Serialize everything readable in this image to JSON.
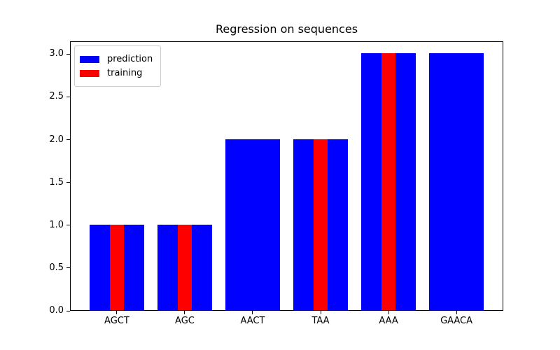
{
  "chart_data": {
    "type": "bar",
    "title": "Regression on sequences",
    "xlabel": "",
    "ylabel": "",
    "categories": [
      "AGCT",
      "AGC",
      "AACT",
      "TAA",
      "AAA",
      "GAACA"
    ],
    "series": [
      {
        "name": "prediction",
        "color": "#0000ff",
        "bar_width_units": 0.8,
        "values": [
          1.0,
          1.0,
          2.0,
          2.0,
          3.0,
          3.0
        ]
      },
      {
        "name": "training",
        "color": "#ff0000",
        "bar_width_units": 0.2,
        "values": [
          1.0,
          1.0,
          null,
          2.0,
          3.0,
          null
        ]
      }
    ],
    "ylim": [
      0,
      3.15
    ],
    "xlim": [
      -0.69,
      5.69
    ],
    "yticks": [
      0.0,
      0.5,
      1.0,
      1.5,
      2.0,
      2.5,
      3.0
    ],
    "ytick_labels": [
      "0.0",
      "0.5",
      "1.0",
      "1.5",
      "2.0",
      "2.5",
      "3.0"
    ],
    "grid": false,
    "legend": {
      "position": "upper-left",
      "labels": [
        "prediction",
        "training"
      ]
    },
    "colors": {
      "background": "#ffffff",
      "axis": "#000000",
      "text": "#000000",
      "legend_border": "#cccccc"
    }
  }
}
